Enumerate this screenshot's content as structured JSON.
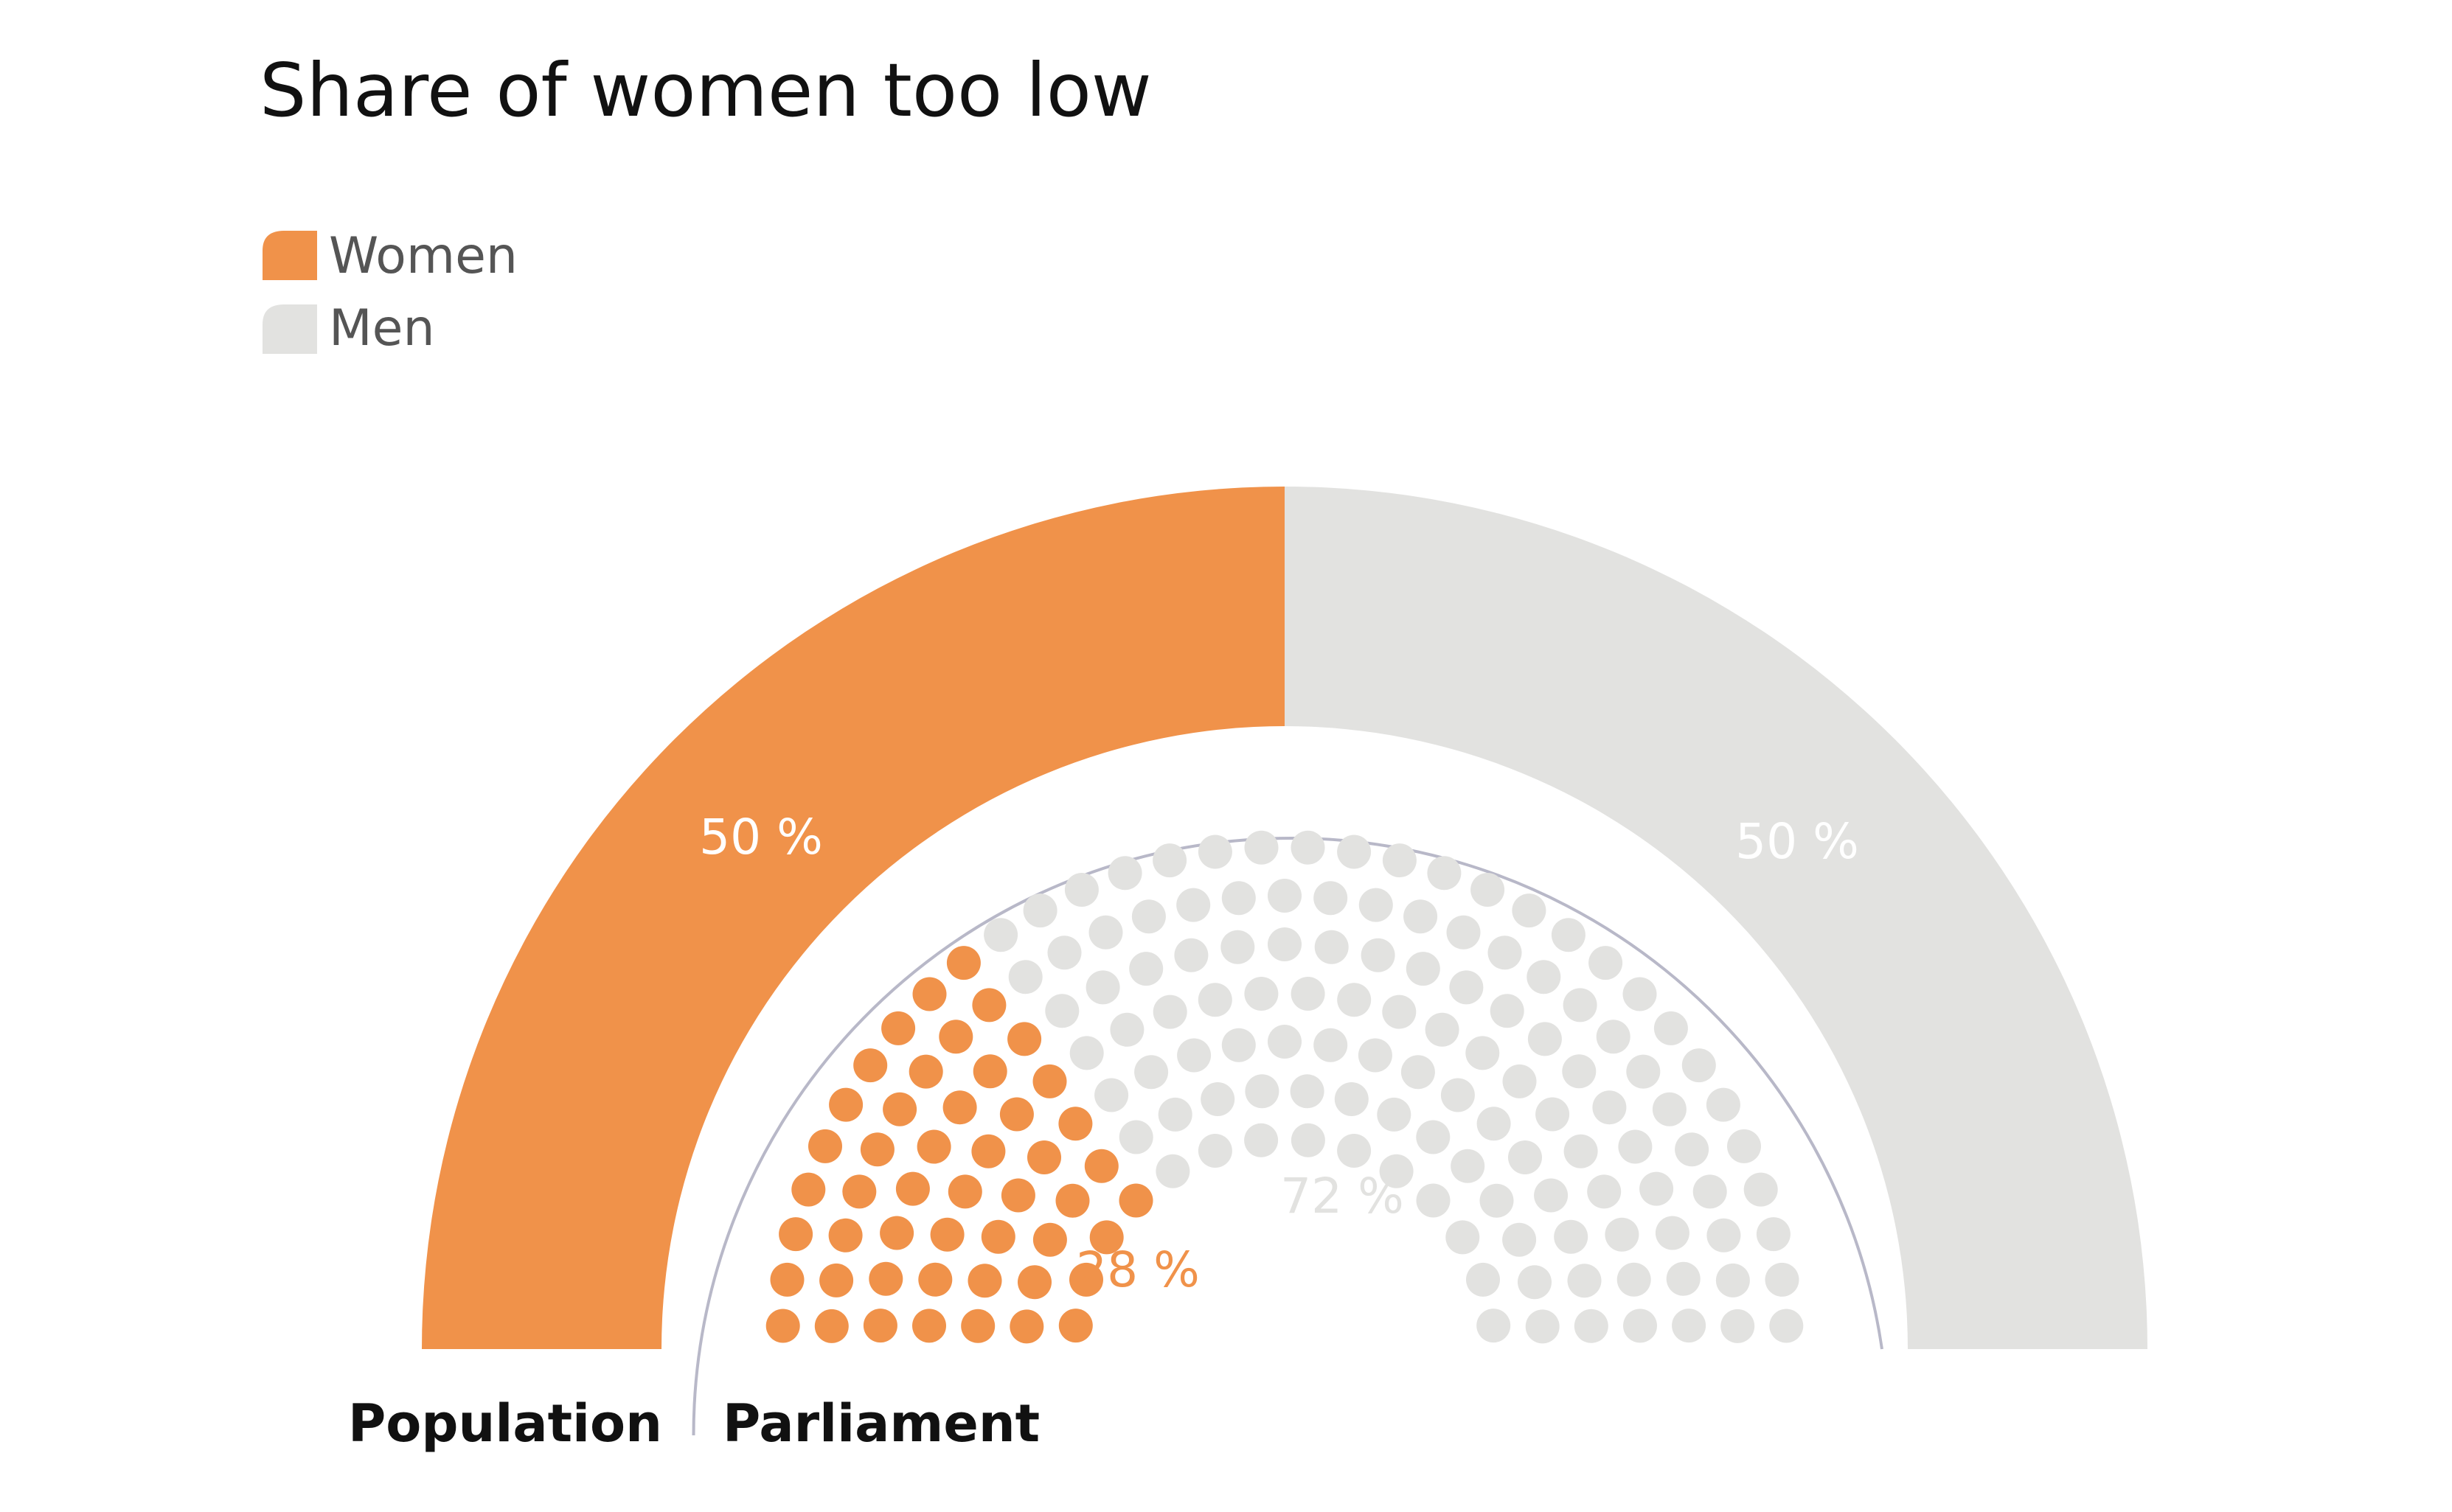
{
  "chart_data": {
    "type": "pie",
    "title": "Share of women too low",
    "legend": [
      {
        "label": "Women",
        "color": "#F0924A"
      },
      {
        "label": "Men",
        "color": "#E2E2E0"
      }
    ],
    "legend_position": "top-left",
    "rings": [
      {
        "name": "Population",
        "style": "half-donut",
        "values": [
          {
            "category": "Women",
            "value": 50,
            "label": "50 %"
          },
          {
            "category": "Men",
            "value": 50,
            "label": "50 %"
          }
        ]
      },
      {
        "name": "Parliament",
        "style": "seat-dots",
        "values": [
          {
            "category": "Women",
            "value": 28,
            "label": "28 %"
          },
          {
            "category": "Men",
            "value": 72,
            "label": "72 %"
          }
        ]
      }
    ]
  }
}
